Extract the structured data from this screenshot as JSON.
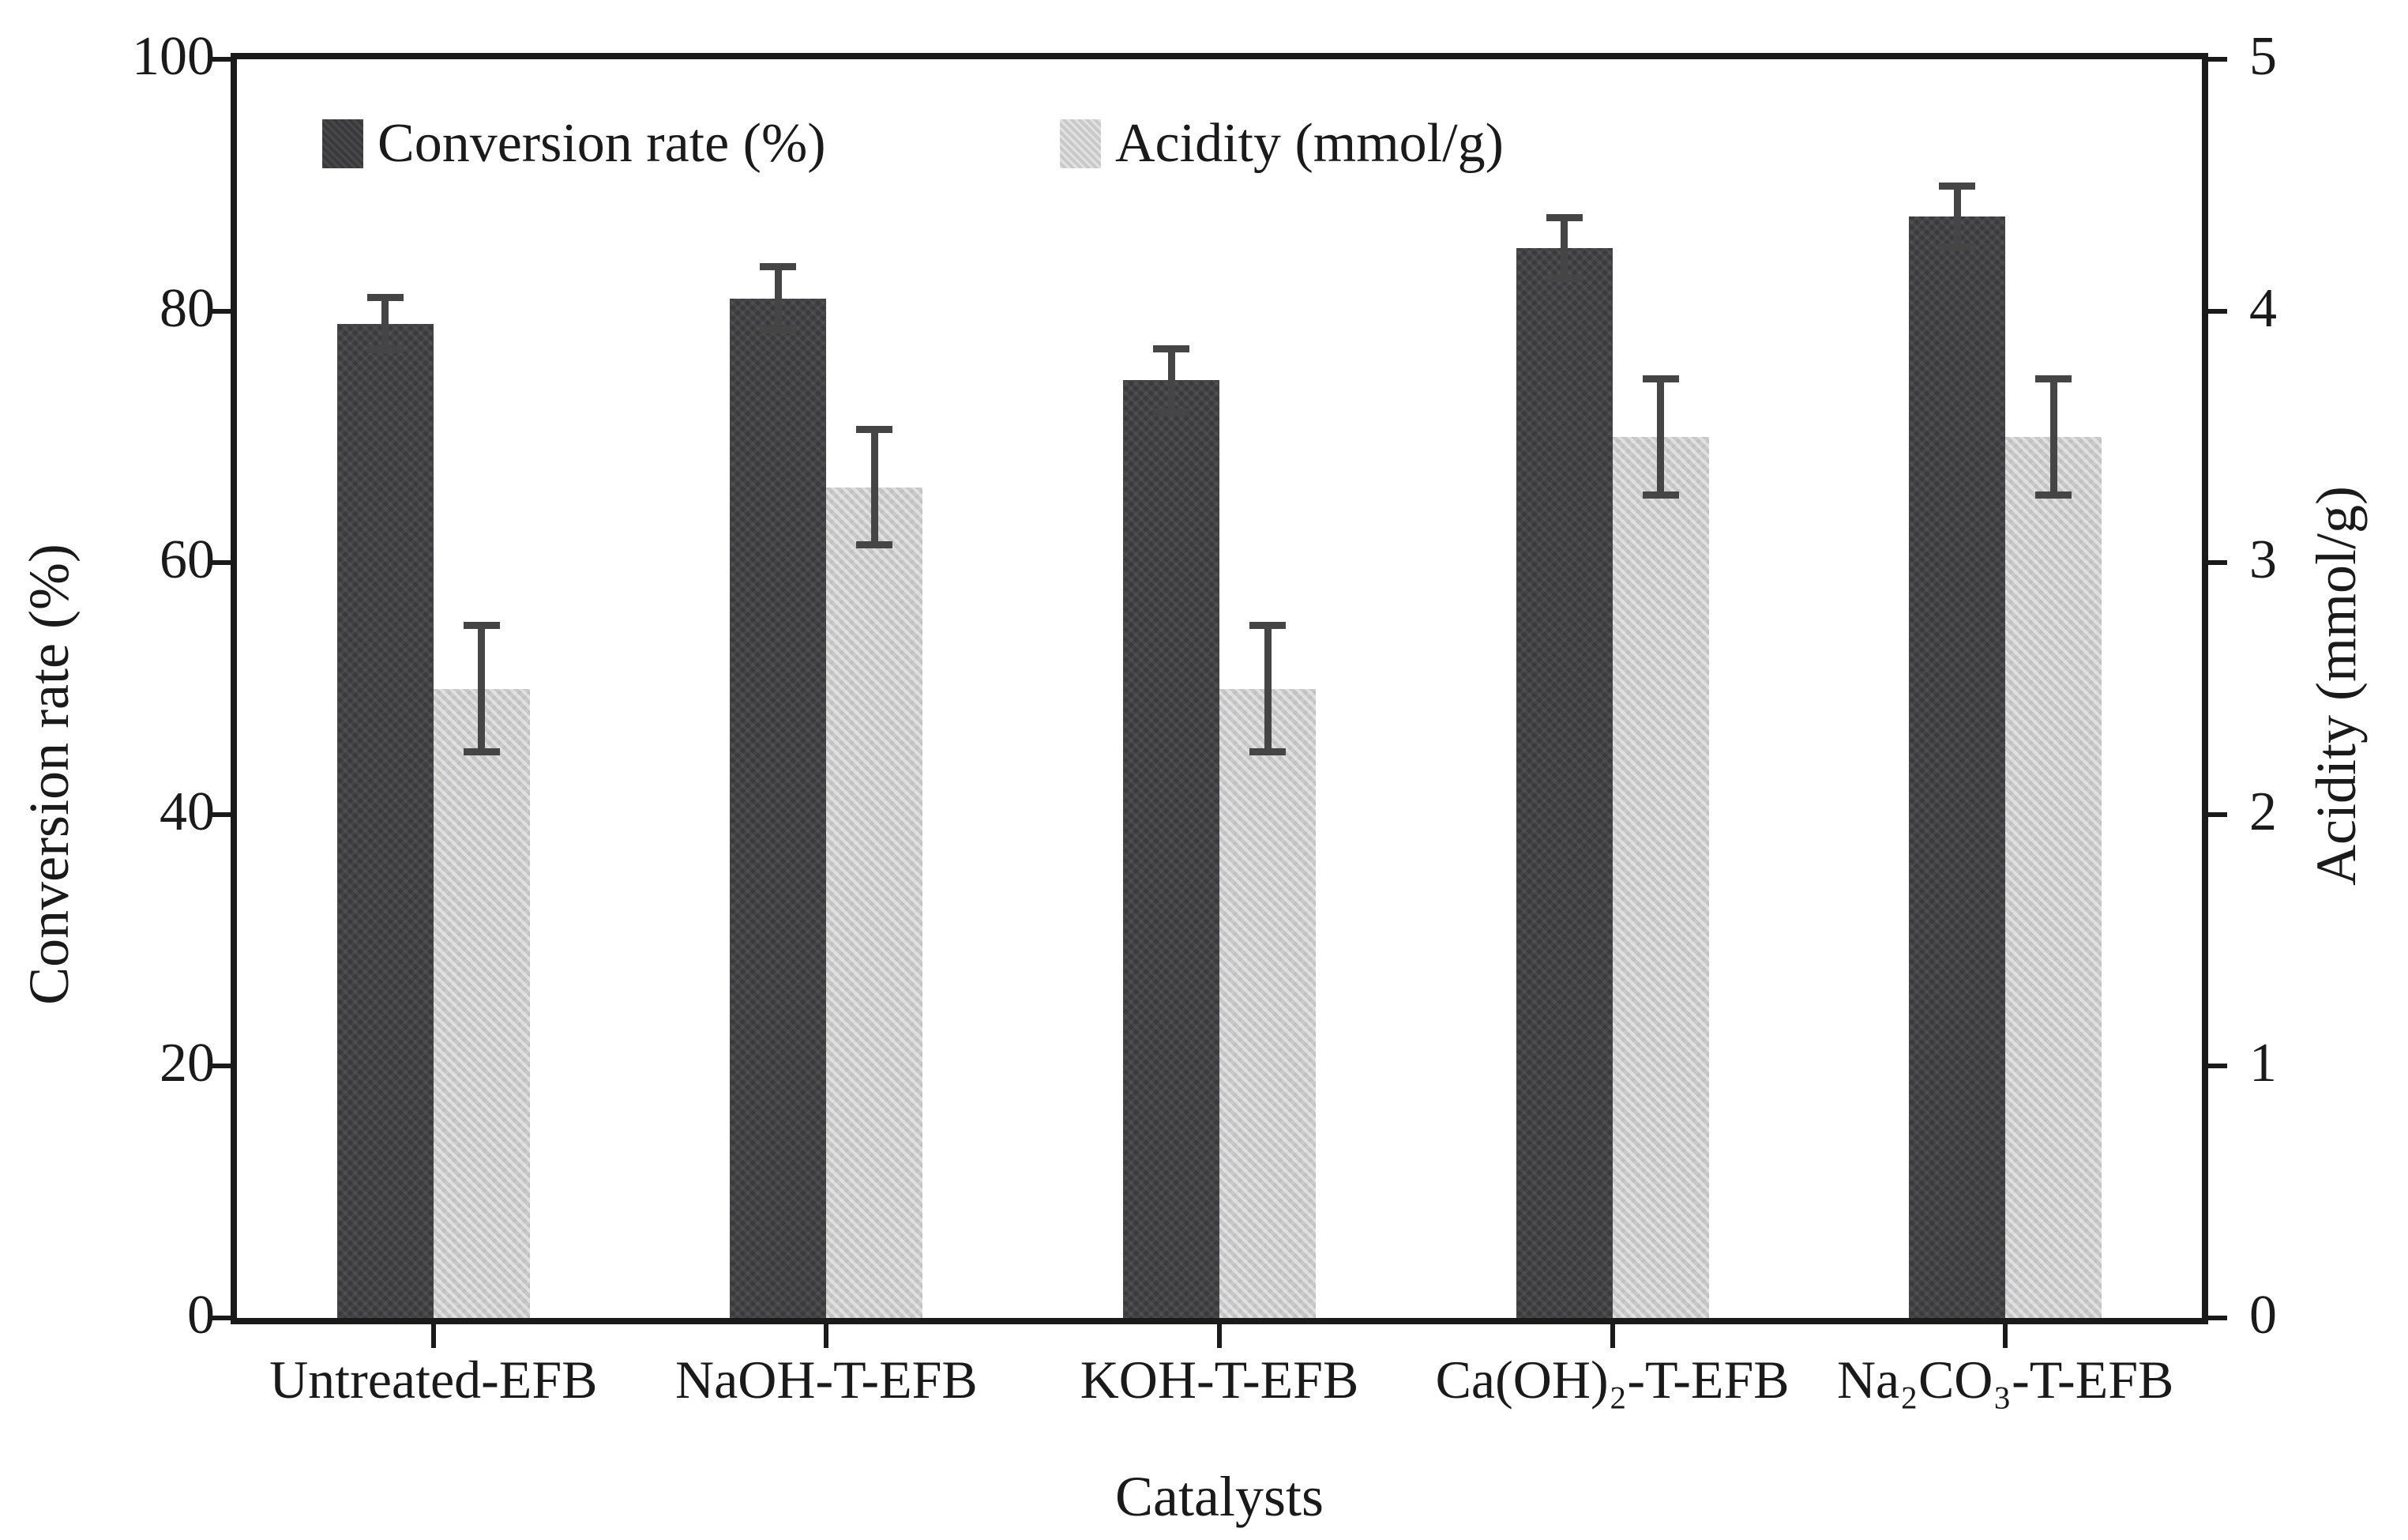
{
  "chart_data": {
    "type": "bar",
    "title": "",
    "xlabel": "Catalysts",
    "ylabel_left": "Conversion rate (%)",
    "ylabel_right": "Acidity (mmol/g)",
    "categories": [
      "Untreated-EFB",
      "NaOH-T-EFB",
      "KOH-T-EFB",
      "Ca(OH)₂-T-EFB",
      "Na₂CO₃-T-EFB"
    ],
    "series": [
      {
        "name": "Conversion rate (%)",
        "axis": "left",
        "color": "#3a3a3c",
        "values": [
          79,
          81,
          74.5,
          85,
          87.5
        ],
        "errors": [
          2.1,
          2.5,
          2.5,
          2.4,
          2.4
        ]
      },
      {
        "name": "Acidity (mmol/g)",
        "axis": "right",
        "color": "#c9c9c9",
        "values": [
          2.5,
          3.3,
          2.5,
          3.5,
          3.5
        ],
        "errors": [
          0.25,
          0.23,
          0.25,
          0.23,
          0.23
        ]
      }
    ],
    "left_axis": {
      "min": 0,
      "max": 100,
      "ticks": [
        0,
        20,
        40,
        60,
        80,
        100
      ]
    },
    "right_axis": {
      "min": 0,
      "max": 5,
      "ticks": [
        0,
        1,
        2,
        3,
        4,
        5
      ]
    },
    "legend_position": "top-inside",
    "grid": "off",
    "error_bar_color": "#454545",
    "axis_color": "#1a1a1a"
  }
}
